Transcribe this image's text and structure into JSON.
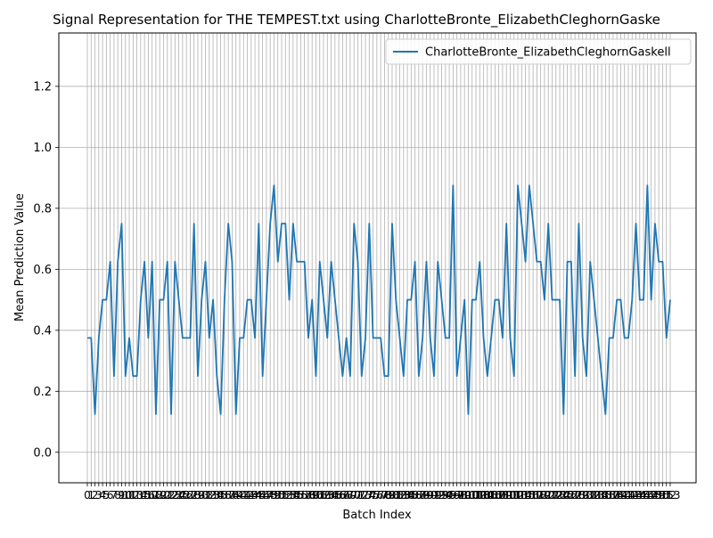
{
  "chart_data": {
    "type": "line",
    "title": "Signal Representation for THE TEMPEST.txt using CharlotteBronte_ElizabethCleghornGaske",
    "xlabel": "Batch Index",
    "ylabel": "Mean Prediction Value",
    "ylim": [
      -0.1,
      1.375
    ],
    "y_ticks": [
      0.0,
      0.2,
      0.4,
      0.6,
      0.8,
      1.0,
      1.2
    ],
    "y_tick_labels": [
      "0.0",
      "0.2",
      "0.4",
      "0.6",
      "0.8",
      "1.0",
      "1.2"
    ],
    "x_tick_labels_visible": "0 1 2 3 4 5 6 7 8 9 10 ... 153 (overlapping, illegible)",
    "grid": true,
    "legend": "top-right",
    "x": [
      0,
      1,
      2,
      3,
      4,
      5,
      6,
      7,
      8,
      9,
      10,
      11,
      12,
      13,
      14,
      15,
      16,
      17,
      18,
      19,
      20,
      21,
      22,
      23,
      24,
      25,
      26,
      27,
      28,
      29,
      30,
      31,
      32,
      33,
      34,
      35,
      36,
      37,
      38,
      39,
      40,
      41,
      42,
      43,
      44,
      45,
      46,
      47,
      48,
      49,
      50,
      51,
      52,
      53,
      54,
      55,
      56,
      57,
      58,
      59,
      60,
      61,
      62,
      63,
      64,
      65,
      66,
      67,
      68,
      69,
      70,
      71,
      72,
      73,
      74,
      75,
      76,
      77,
      78,
      79,
      80,
      81,
      82,
      83,
      84,
      85,
      86,
      87,
      88,
      89,
      90,
      91,
      92,
      93,
      94,
      95,
      96,
      97,
      98,
      99,
      100,
      101,
      102,
      103,
      104,
      105,
      106,
      107,
      108,
      109,
      110,
      111,
      112,
      113,
      114,
      115,
      116,
      117,
      118,
      119,
      120,
      121,
      122,
      123,
      124,
      125,
      126,
      127,
      128,
      129,
      130,
      131,
      132,
      133,
      134,
      135,
      136,
      137,
      138,
      139,
      140,
      141,
      142,
      143,
      144,
      145,
      146,
      147,
      148,
      149,
      150,
      151,
      152,
      153
    ],
    "series": [
      {
        "name": "CharlotteBronte_ElizabethCleghornGaskell",
        "color": "#1f77b4",
        "values": [
          0.375,
          0.375,
          0.125,
          0.375,
          0.5,
          0.5,
          0.625,
          0.25,
          0.625,
          0.75,
          0.25,
          0.375,
          0.25,
          0.25,
          0.5,
          0.625,
          0.375,
          0.625,
          0.125,
          0.5,
          0.5,
          0.625,
          0.125,
          0.625,
          0.5,
          0.375,
          0.375,
          0.375,
          0.75,
          0.25,
          0.5,
          0.625,
          0.375,
          0.5,
          0.25,
          0.125,
          0.5,
          0.75,
          0.625,
          0.125,
          0.375,
          0.375,
          0.5,
          0.5,
          0.375,
          0.75,
          0.25,
          0.5,
          0.75,
          0.875,
          0.625,
          0.75,
          0.75,
          0.5,
          0.75,
          0.625,
          0.625,
          0.625,
          0.375,
          0.5,
          0.25,
          0.625,
          0.5,
          0.375,
          0.625,
          0.5,
          0.375,
          0.25,
          0.375,
          0.25,
          0.75,
          0.625,
          0.25,
          0.375,
          0.75,
          0.375,
          0.375,
          0.375,
          0.25,
          0.25,
          0.75,
          0.5,
          0.375,
          0.25,
          0.5,
          0.5,
          0.625,
          0.25,
          0.375,
          0.625,
          0.375,
          0.25,
          0.625,
          0.5,
          0.375,
          0.375,
          0.875,
          0.25,
          0.375,
          0.5,
          0.125,
          0.5,
          0.5,
          0.625,
          0.375,
          0.25,
          0.375,
          0.5,
          0.5,
          0.375,
          0.75,
          0.375,
          0.25,
          0.875,
          0.75,
          0.625,
          0.875,
          0.75,
          0.625,
          0.625,
          0.5,
          0.75,
          0.5,
          0.5,
          0.5,
          0.125,
          0.625,
          0.625,
          0.25,
          0.75,
          0.375,
          0.25,
          0.625,
          0.5,
          0.375,
          0.25,
          0.125,
          0.375,
          0.375,
          0.5,
          0.5,
          0.375,
          0.375,
          0.5,
          0.75,
          0.5,
          0.5,
          0.875,
          0.5,
          0.75,
          0.625,
          0.625,
          0.375,
          0.5
        ]
      }
    ]
  }
}
